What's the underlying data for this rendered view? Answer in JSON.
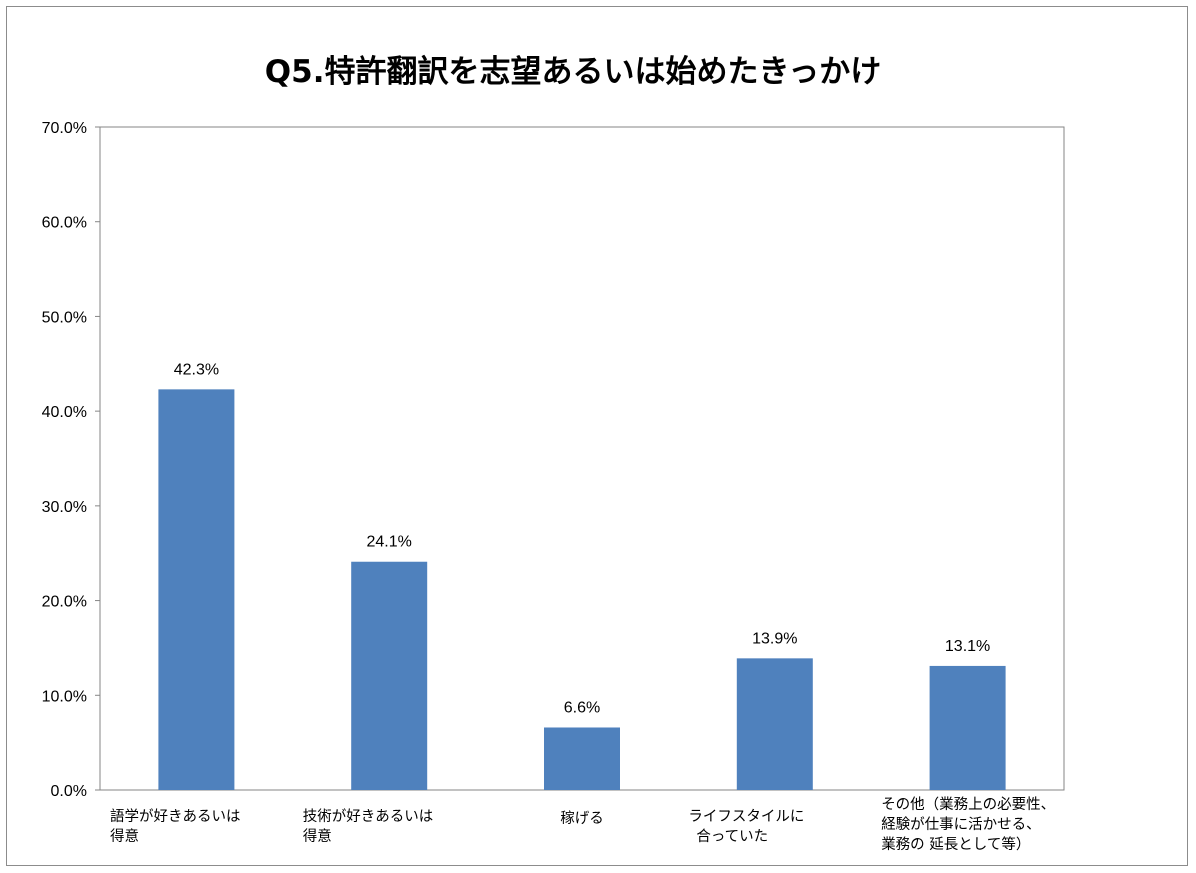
{
  "chart_data": {
    "type": "bar",
    "title": "Q5.特許翻訳を志望あるいは始めたきっかけ",
    "xlabel": "",
    "ylabel": "",
    "ylim": [
      0,
      70
    ],
    "y_ticks": [
      "0.0%",
      "10.0%",
      "20.0%",
      "30.0%",
      "40.0%",
      "50.0%",
      "60.0%",
      "70.0%"
    ],
    "y_tick_values": [
      0,
      10,
      20,
      30,
      40,
      50,
      60,
      70
    ],
    "grid": false,
    "legend": "none",
    "bar_color": "#4f81bd",
    "categories": [
      [
        "語学が好きあるいは",
        "得意"
      ],
      [
        "技術が好きあるいは",
        "得意"
      ],
      [
        "稼げる"
      ],
      [
        "ライフスタイルに",
        "合っていた"
      ],
      [
        "その他（業務上の必要性、",
        "経験が仕事に活かせる、",
        "業務の 延長として等）"
      ]
    ],
    "values": [
      42.3,
      24.1,
      6.6,
      13.9,
      13.1
    ],
    "data_labels": [
      "42.3%",
      "24.1%",
      "6.6%",
      "13.9%",
      "13.1%"
    ]
  }
}
